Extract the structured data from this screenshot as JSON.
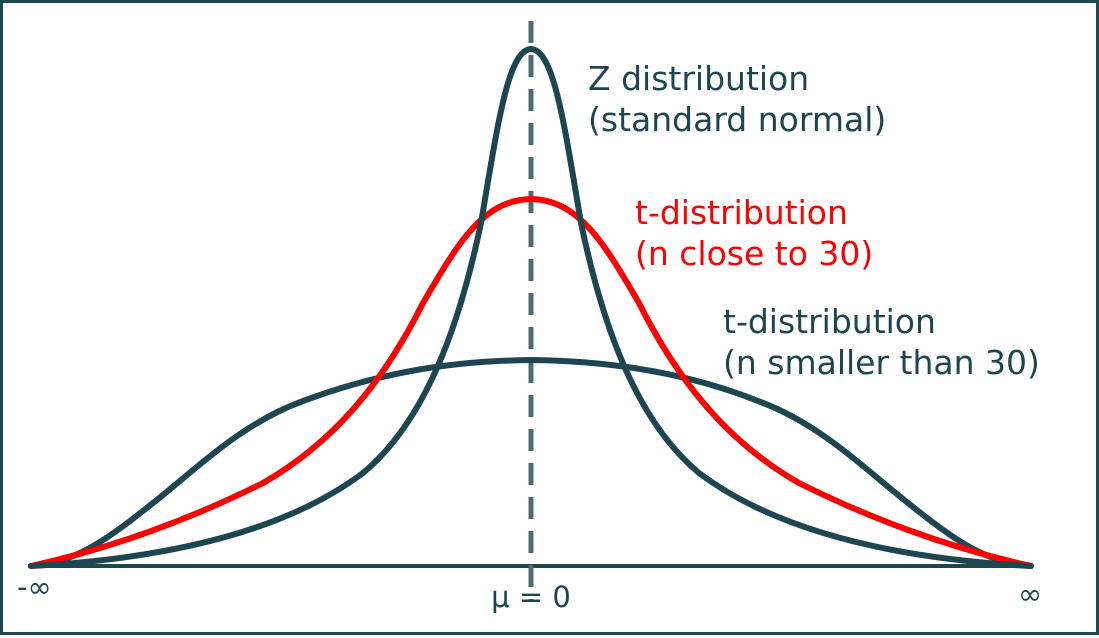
{
  "colors": {
    "teal": "#1d4650",
    "red": "#ff0000",
    "dash": "#4f6b72"
  },
  "labels": {
    "z_line1": "Z distribution",
    "z_line2": "(standard normal)",
    "t30_line1": "t-distribution",
    "t30_line2": "(n close to 30)",
    "tsmall_line1": "t-distribution",
    "tsmall_line2": "(n smaller than 30)"
  },
  "axis": {
    "left": "-∞",
    "center": "μ = 0",
    "right": "∞"
  }
}
